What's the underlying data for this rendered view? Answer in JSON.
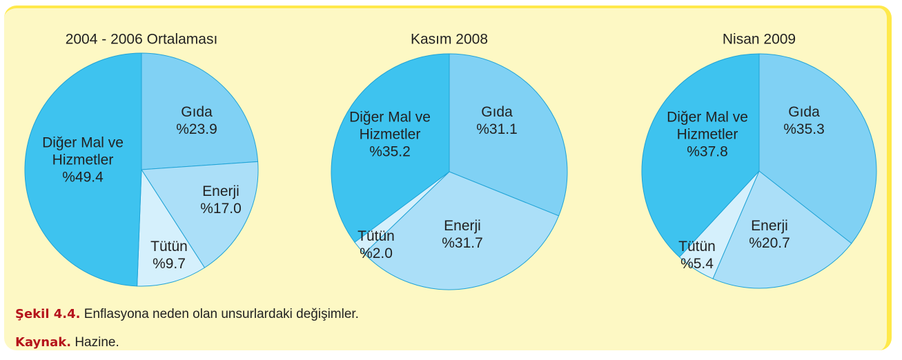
{
  "chart_data": [
    {
      "type": "pie",
      "title": "2004 - 2006 Ortalaması",
      "categories": [
        "Gıda",
        "Enerji",
        "Tütün",
        "Diğer Mal ve Hizmetler"
      ],
      "values": [
        23.9,
        17.0,
        9.7,
        49.4
      ],
      "value_labels": [
        "%23.9",
        "%17.0",
        "%9.7",
        "%49.4"
      ],
      "colors": [
        "#80d1f4",
        "#abdff8",
        "#d5f0fc",
        "#3ec3ef"
      ]
    },
    {
      "type": "pie",
      "title": "Kasım 2008",
      "categories": [
        "Gıda",
        "Enerji",
        "Tütün",
        "Diğer Mal ve Hizmetler"
      ],
      "values": [
        31.1,
        31.7,
        2.0,
        35.2
      ],
      "value_labels": [
        "%31.1",
        "%31.7",
        "%2.0",
        "%35.2"
      ],
      "colors": [
        "#80d1f4",
        "#abdff8",
        "#d5f0fc",
        "#3ec3ef"
      ]
    },
    {
      "type": "pie",
      "title": "Nisan 2009",
      "categories": [
        "Gıda",
        "Enerji",
        "Tütün",
        "Diğer Mal ve Hizmetler"
      ],
      "values": [
        35.3,
        20.7,
        5.4,
        37.8
      ],
      "value_labels": [
        "%35.3",
        "%20.7",
        "%5.4",
        "%37.8"
      ],
      "colors": [
        "#80d1f4",
        "#abdff8",
        "#d5f0fc",
        "#3ec3ef"
      ]
    }
  ],
  "caption": {
    "label": "Şekil 4.4.",
    "text": "Enflasyona neden olan unsurlardaki değişimler."
  },
  "source": {
    "label": "Kaynak.",
    "text": "Hazine."
  }
}
